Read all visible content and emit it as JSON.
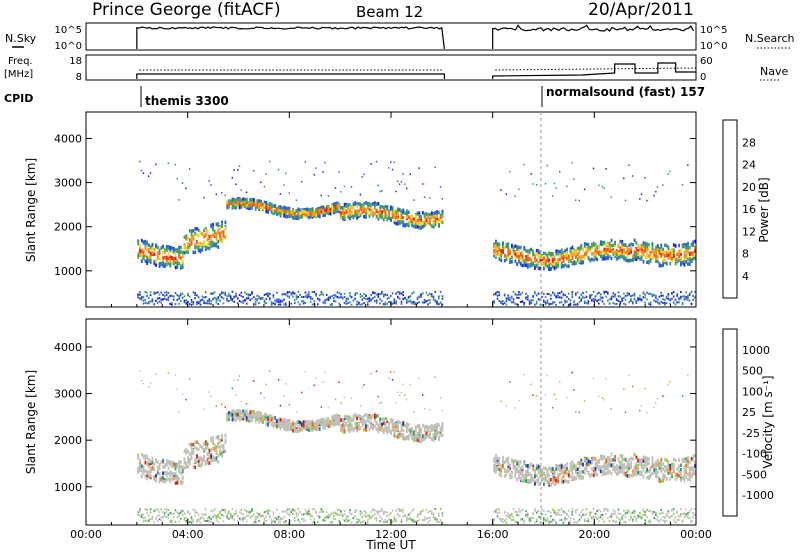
{
  "header": {
    "station": "Prince George (fitACF)",
    "beam": "Beam 12",
    "date": "20/Apr/2011"
  },
  "strip": {
    "nsky_label": "N.Sky",
    "nsky_ticks": [
      "10^5",
      "10^0"
    ],
    "nsearch_label": "N.Search",
    "nsearch_ticks": [
      "10^5",
      "10^0"
    ],
    "freq_label_1": "Freq.",
    "freq_label_2": "[MHz]",
    "freq_ticks": [
      "18",
      "8"
    ],
    "nave_label": "Nave",
    "nave_ticks": [
      "60",
      "0"
    ],
    "cpid_label": "CPID",
    "cpid_1": "themis 3300",
    "cpid_2": "normalsound (fast) 157"
  },
  "chart_data": [
    {
      "type": "heatmap",
      "panel": "power",
      "ylabel": "Slant Range [km]",
      "yticks": [
        "1000",
        "2000",
        "3000",
        "4000"
      ],
      "ylim": [
        180,
        4600
      ],
      "colorbar": {
        "label": "Power [dB]",
        "ticks": [
          "4",
          "8",
          "12",
          "16",
          "20",
          "24",
          "28"
        ],
        "colors": [
          "#1a22e6",
          "#2a5fd6",
          "#3b8f8a",
          "#4aa45a",
          "#f2d330",
          "#f59a20",
          "#f06010",
          "#e52010"
        ]
      },
      "data_gaps_ut": [
        [
          "00:00",
          "02:00"
        ],
        [
          "14:10",
          "16:00"
        ]
      ],
      "echo_bands": [
        {
          "start_h": 2.0,
          "end_h": 3.8,
          "center_km": 1450,
          "width_km": 350
        },
        {
          "start_h": 3.8,
          "end_h": 5.5,
          "center_km": 1800,
          "width_km": 400
        },
        {
          "start_h": 5.5,
          "end_h": 10.0,
          "center_km": 2450,
          "width_km": 150
        },
        {
          "start_h": 10.0,
          "end_h": 14.0,
          "center_km": 2300,
          "width_km": 250
        },
        {
          "start_h": 16.0,
          "end_h": 21.5,
          "center_km": 1400,
          "width_km": 300
        },
        {
          "start_h": 21.5,
          "end_h": 24.0,
          "center_km": 1500,
          "width_km": 350
        }
      ]
    },
    {
      "type": "heatmap",
      "panel": "velocity",
      "ylabel": "Slant Range [km]",
      "yticks": [
        "1000",
        "2000",
        "3000",
        "4000"
      ],
      "ylim": [
        180,
        4600
      ],
      "colorbar": {
        "label": "Velocity [m s⁻¹]",
        "ticks": [
          "1000",
          "500",
          "100",
          "25",
          "-25",
          "-100",
          "-500",
          "-1000"
        ],
        "colors": [
          "#2233bb",
          "#2a8a8a",
          "#3fa060",
          "#88cc44",
          "#c0c0b8",
          "#f0a020",
          "#f07010",
          "#e02010"
        ]
      },
      "xlabel": "Time UT",
      "xticks": [
        "00:00",
        "04:00",
        "08:00",
        "12:00",
        "16:00",
        "20:00",
        "00:00"
      ],
      "xlim_hours": [
        0,
        24
      ]
    }
  ]
}
